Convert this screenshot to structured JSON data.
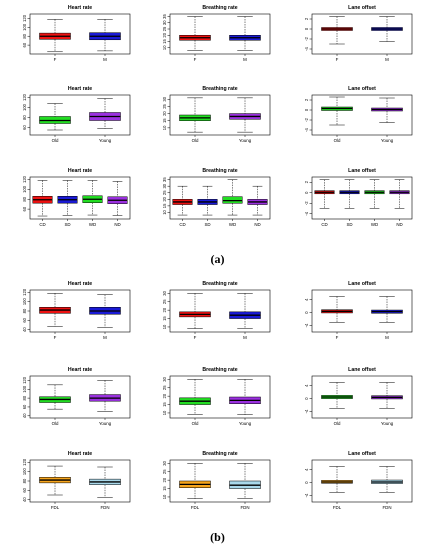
{
  "figure": {
    "caption_a": "(a)",
    "caption_b": "(b)"
  },
  "chart_data": [
    {
      "id": "a1",
      "type": "box",
      "title": "Heart rate",
      "categories": [
        "F",
        "M"
      ],
      "yticks": [
        60,
        80,
        100,
        120
      ],
      "ylim": [
        40,
        130
      ],
      "boxes": [
        {
          "color": "#ee1111",
          "min": 45,
          "q1": 73,
          "median": 80,
          "q3": 87,
          "max": 118
        },
        {
          "color": "#1a1ad6",
          "min": 47,
          "q1": 72,
          "median": 80,
          "q3": 88,
          "max": 118
        }
      ]
    },
    {
      "id": "a2",
      "type": "box",
      "title": "Breathing rate",
      "categories": [
        "F",
        "M"
      ],
      "yticks": [
        10,
        15,
        20,
        25,
        30,
        35
      ],
      "ylim": [
        5,
        37
      ],
      "boxes": [
        {
          "color": "#ee1111",
          "min": 8,
          "q1": 16,
          "median": 18,
          "q3": 20,
          "max": 35
        },
        {
          "color": "#1a1ad6",
          "min": 8,
          "q1": 16,
          "median": 18,
          "q3": 20,
          "max": 35
        }
      ]
    },
    {
      "id": "a3",
      "type": "box",
      "title": "Lane offset",
      "categories": [
        "F",
        "M"
      ],
      "yticks": [
        -4,
        -2,
        0,
        2
      ],
      "ylim": [
        -5,
        3
      ],
      "boxes": [
        {
          "color": "#ee1111",
          "min": -3,
          "q1": -0.3,
          "median": 0,
          "q3": 0.3,
          "max": 2.5
        },
        {
          "color": "#1a1ad6",
          "min": -2.5,
          "q1": -0.3,
          "median": 0,
          "q3": 0.3,
          "max": 2.5
        }
      ]
    },
    {
      "id": "a4",
      "type": "box",
      "title": "Heart rate",
      "categories": [
        "Old",
        "Young"
      ],
      "yticks": [
        60,
        80,
        100,
        120
      ],
      "ylim": [
        45,
        125
      ],
      "boxes": [
        {
          "color": "#22dd22",
          "min": 55,
          "q1": 68,
          "median": 74,
          "q3": 82,
          "max": 108
        },
        {
          "color": "#9b30e0",
          "min": 58,
          "q1": 74,
          "median": 82,
          "q3": 90,
          "max": 118
        }
      ]
    },
    {
      "id": "a5",
      "type": "box",
      "title": "Breathing rate",
      "categories": [
        "Old",
        "Young"
      ],
      "yticks": [
        10,
        15,
        20,
        25,
        30
      ],
      "ylim": [
        5,
        33
      ],
      "boxes": [
        {
          "color": "#22dd22",
          "min": 7,
          "q1": 15,
          "median": 17,
          "q3": 19,
          "max": 31
        },
        {
          "color": "#9b30e0",
          "min": 7,
          "q1": 16,
          "median": 18,
          "q3": 20,
          "max": 31
        }
      ]
    },
    {
      "id": "a6",
      "type": "box",
      "title": "Lane offset",
      "categories": [
        "Old",
        "Young"
      ],
      "yticks": [
        -4,
        -2,
        0,
        2
      ],
      "ylim": [
        -5,
        3
      ],
      "boxes": [
        {
          "color": "#22dd22",
          "min": -3,
          "q1": -0.1,
          "median": 0.3,
          "q3": 0.6,
          "max": 2.6
        },
        {
          "color": "#9b30e0",
          "min": -2.5,
          "q1": -0.2,
          "median": 0.1,
          "q3": 0.4,
          "max": 2.4
        }
      ]
    },
    {
      "id": "a7",
      "type": "box",
      "title": "Heart rate",
      "categories": [
        "CD",
        "SD",
        "WD",
        "ND"
      ],
      "yticks": [
        60,
        80,
        100,
        120
      ],
      "ylim": [
        40,
        125
      ],
      "boxes": [
        {
          "color": "#ee1111",
          "min": 46,
          "q1": 72,
          "median": 79,
          "q3": 86,
          "max": 118
        },
        {
          "color": "#1a1ad6",
          "min": 47,
          "q1": 72,
          "median": 79,
          "q3": 86,
          "max": 118
        },
        {
          "color": "#22dd22",
          "min": 48,
          "q1": 73,
          "median": 80,
          "q3": 87,
          "max": 118
        },
        {
          "color": "#9b30e0",
          "min": 47,
          "q1": 71,
          "median": 78,
          "q3": 85,
          "max": 116
        }
      ]
    },
    {
      "id": "a8",
      "type": "box",
      "title": "Breathing rate",
      "categories": [
        "CD",
        "SD",
        "WD",
        "ND"
      ],
      "yticks": [
        10,
        15,
        20,
        25,
        30,
        35
      ],
      "ylim": [
        5,
        37
      ],
      "boxes": [
        {
          "color": "#ee1111",
          "min": 8,
          "q1": 16,
          "median": 18,
          "q3": 20,
          "max": 30
        },
        {
          "color": "#1a1ad6",
          "min": 8,
          "q1": 16,
          "median": 18,
          "q3": 20,
          "max": 30
        },
        {
          "color": "#22dd22",
          "min": 8,
          "q1": 17,
          "median": 19,
          "q3": 22,
          "max": 35
        },
        {
          "color": "#9b30e0",
          "min": 8,
          "q1": 16,
          "median": 18,
          "q3": 20,
          "max": 30
        }
      ]
    },
    {
      "id": "a9",
      "type": "box",
      "title": "Lane offset",
      "categories": [
        "CD",
        "SD",
        "WD",
        "ND"
      ],
      "yticks": [
        -4,
        -2,
        0,
        2
      ],
      "ylim": [
        -5,
        3
      ],
      "boxes": [
        {
          "color": "#ee1111",
          "min": -3,
          "q1": -0.2,
          "median": 0.1,
          "q3": 0.4,
          "max": 2.5
        },
        {
          "color": "#1a1ad6",
          "min": -3,
          "q1": -0.2,
          "median": 0.1,
          "q3": 0.4,
          "max": 2.5
        },
        {
          "color": "#22dd22",
          "min": -3,
          "q1": -0.2,
          "median": 0.1,
          "q3": 0.4,
          "max": 2.5
        },
        {
          "color": "#9b30e0",
          "min": -3,
          "q1": -0.2,
          "median": 0.1,
          "q3": 0.4,
          "max": 2.5
        }
      ]
    },
    {
      "id": "b1",
      "type": "box",
      "title": "Heart rate",
      "categories": [
        "F",
        "M"
      ],
      "yticks": [
        40,
        60,
        80,
        100,
        120
      ],
      "ylim": [
        35,
        125
      ],
      "boxes": [
        {
          "color": "#ee1111",
          "min": 47,
          "q1": 75,
          "median": 82,
          "q3": 88,
          "max": 118
        },
        {
          "color": "#1a1ad6",
          "min": 45,
          "q1": 73,
          "median": 80,
          "q3": 88,
          "max": 115
        }
      ]
    },
    {
      "id": "b2",
      "type": "box",
      "title": "Breathing rate",
      "categories": [
        "F",
        "M"
      ],
      "yticks": [
        10,
        15,
        20,
        25,
        30
      ],
      "ylim": [
        7,
        32
      ],
      "boxes": [
        {
          "color": "#ee1111",
          "min": 9,
          "q1": 16,
          "median": 17.5,
          "q3": 19,
          "max": 30
        },
        {
          "color": "#1a1ad6",
          "min": 9,
          "q1": 15,
          "median": 17,
          "q3": 19,
          "max": 30
        }
      ]
    },
    {
      "id": "b3",
      "type": "box",
      "title": "Lane offset",
      "categories": [
        "F",
        "M"
      ],
      "yticks": [
        -4,
        0,
        4
      ],
      "ylim": [
        -6,
        7
      ],
      "boxes": [
        {
          "color": "#ee1111",
          "min": -3,
          "q1": -0.1,
          "median": 0.4,
          "q3": 0.9,
          "max": 5
        },
        {
          "color": "#1a1ad6",
          "min": -3,
          "q1": -0.2,
          "median": 0.3,
          "q3": 0.8,
          "max": 5
        }
      ]
    },
    {
      "id": "b4",
      "type": "box",
      "title": "Heart rate",
      "categories": [
        "Old",
        "Young"
      ],
      "yticks": [
        40,
        60,
        80,
        100,
        120
      ],
      "ylim": [
        35,
        130
      ],
      "boxes": [
        {
          "color": "#22dd22",
          "min": 55,
          "q1": 70,
          "median": 77,
          "q3": 83,
          "max": 110
        },
        {
          "color": "#9b30e0",
          "min": 50,
          "q1": 73,
          "median": 80,
          "q3": 88,
          "max": 120
        }
      ]
    },
    {
      "id": "b5",
      "type": "box",
      "title": "Breathing rate",
      "categories": [
        "Old",
        "Young"
      ],
      "yticks": [
        10,
        15,
        20,
        25,
        30
      ],
      "ylim": [
        7,
        32
      ],
      "boxes": [
        {
          "color": "#22dd22",
          "min": 9,
          "q1": 15,
          "median": 17,
          "q3": 19,
          "max": 30
        },
        {
          "color": "#9b30e0",
          "min": 9,
          "q1": 15.5,
          "median": 17.5,
          "q3": 19.5,
          "max": 30
        }
      ]
    },
    {
      "id": "b6",
      "type": "box",
      "title": "Lane offset",
      "categories": [
        "Old",
        "Young"
      ],
      "yticks": [
        -4,
        0,
        4
      ],
      "ylim": [
        -6,
        7
      ],
      "boxes": [
        {
          "color": "#22dd22",
          "min": -3,
          "q1": 0,
          "median": 0.5,
          "q3": 1,
          "max": 5
        },
        {
          "color": "#9b30e0",
          "min": -3,
          "q1": -0.1,
          "median": 0.4,
          "q3": 0.9,
          "max": 5
        }
      ]
    },
    {
      "id": "b7",
      "type": "box",
      "title": "Heart rate",
      "categories": [
        "FDL",
        "FDN"
      ],
      "yticks": [
        40,
        60,
        80,
        100,
        120
      ],
      "ylim": [
        35,
        125
      ],
      "boxes": [
        {
          "color": "#f7a51c",
          "min": 50,
          "q1": 76,
          "median": 82,
          "q3": 88,
          "max": 112
        },
        {
          "color": "#a9d8ea",
          "min": 45,
          "q1": 72,
          "median": 78,
          "q3": 84,
          "max": 110
        }
      ]
    },
    {
      "id": "b8",
      "type": "box",
      "title": "Breathing rate",
      "categories": [
        "FDL",
        "FDN"
      ],
      "yticks": [
        10,
        15,
        20,
        25,
        30
      ],
      "ylim": [
        7,
        32
      ],
      "boxes": [
        {
          "color": "#f7a51c",
          "min": 9,
          "q1": 15.5,
          "median": 17.5,
          "q3": 19.5,
          "max": 30
        },
        {
          "color": "#a9d8ea",
          "min": 9,
          "q1": 15,
          "median": 17,
          "q3": 19.5,
          "max": 30
        }
      ]
    },
    {
      "id": "b9",
      "type": "box",
      "title": "Lane offset",
      "categories": [
        "FDL",
        "FDN"
      ],
      "yticks": [
        -4,
        0,
        4
      ],
      "ylim": [
        -6,
        7
      ],
      "boxes": [
        {
          "color": "#f7a51c",
          "min": -3,
          "q1": -0.2,
          "median": 0.2,
          "q3": 0.7,
          "max": 5
        },
        {
          "color": "#a9d8ea",
          "min": -3,
          "q1": -0.3,
          "median": 0.2,
          "q3": 0.8,
          "max": 5
        }
      ]
    }
  ]
}
